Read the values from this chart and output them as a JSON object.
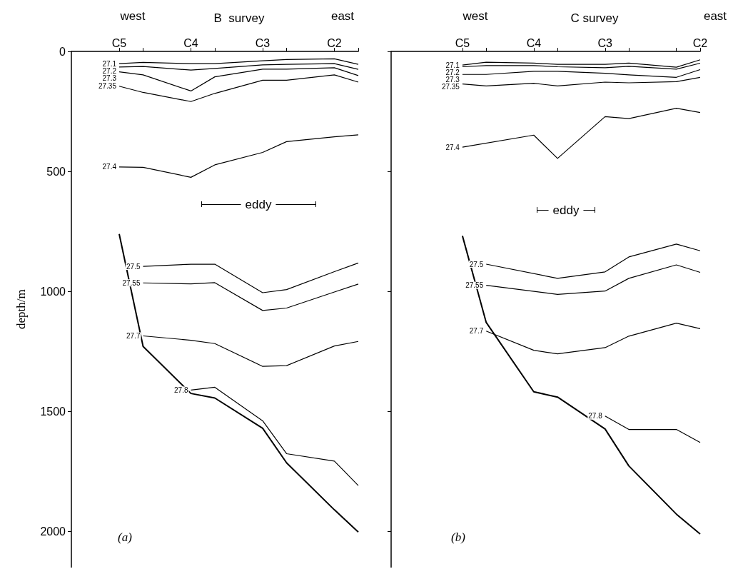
{
  "chart_data": [
    {
      "type": "line",
      "title": "B  survey",
      "ylabel": "depth/m",
      "annotations": [
        "west",
        "east",
        "(a)",
        "eddy"
      ],
      "categories": [
        null,
        null,
        "C5",
        null,
        null,
        "C4",
        null,
        null,
        "C3",
        null,
        null,
        "C2",
        null
      ],
      "ylim": [
        2150,
        0
      ],
      "yticks": [
        0,
        500,
        1000,
        1500,
        2000
      ],
      "grid": false,
      "legend": false,
      "marker": "none",
      "line_style": "solid",
      "series": [
        {
          "color": "#000000",
          "values": [
            null,
            null,
            761,
            1230,
            null,
            1426,
            1445,
            null,
            1571,
            1715,
            null,
            1911,
            2004
          ]
        },
        {
          "name": "27.1",
          "color": "#000000",
          "values": [
            null,
            null,
            51,
            46,
            null,
            51,
            51,
            null,
            39,
            34,
            null,
            31,
            54
          ]
        },
        {
          "name": "27.2",
          "color": "#000000",
          "values": [
            null,
            null,
            65,
            63,
            null,
            78,
            71,
            null,
            56,
            54,
            null,
            51,
            75
          ]
        },
        {
          "name": "27.3",
          "color": "#000000",
          "values": [
            null,
            null,
            85,
            98,
            null,
            165,
            106,
            null,
            74,
            74,
            null,
            68,
            101
          ]
        },
        {
          "name": "27.35",
          "color": "#000000",
          "values": [
            null,
            null,
            145,
            171,
            null,
            209,
            175,
            null,
            120,
            120,
            null,
            98,
            128
          ]
        },
        {
          "name": "27.4",
          "color": "#000000",
          "values": [
            null,
            null,
            482,
            483,
            null,
            525,
            473,
            null,
            421,
            376,
            null,
            356,
            348
          ]
        },
        {
          "name": "27.5",
          "color": "#000000",
          "values": [
            null,
            null,
            null,
            896,
            null,
            887,
            887,
            null,
            1006,
            993,
            null,
            918,
            882
          ]
        },
        {
          "name": "27.55",
          "color": "#000000",
          "values": [
            null,
            null,
            null,
            965,
            null,
            969,
            964,
            null,
            1080,
            1070,
            null,
            1003,
            970
          ]
        },
        {
          "name": "27.7",
          "color": "#000000",
          "values": [
            null,
            null,
            null,
            1186,
            null,
            1204,
            1218,
            null,
            1313,
            1310,
            null,
            1228,
            1209
          ]
        },
        {
          "name": "27.8",
          "color": "#000000",
          "values": [
            null,
            null,
            null,
            null,
            null,
            1412,
            1400,
            null,
            1540,
            1677,
            null,
            1708,
            1810
          ]
        }
      ]
    },
    {
      "type": "line",
      "title": "C survey",
      "annotations": [
        "west",
        "east",
        "(b)",
        "eddy"
      ],
      "tick_labels": "x",
      "categories": [
        null,
        null,
        null,
        "C5",
        null,
        null,
        "C4",
        null,
        null,
        "C3",
        null,
        null,
        null,
        "C2"
      ],
      "ylim": [
        2150,
        0
      ],
      "yticks": [
        0,
        500,
        1000,
        1500,
        2000
      ],
      "grid": false,
      "legend": false,
      "marker": "none",
      "line_style": "solid",
      "series": [
        {
          "color": "#000000",
          "values": [
            null,
            null,
            null,
            769,
            1130,
            null,
            1419,
            1441,
            null,
            1574,
            1728,
            null,
            1929,
            2012
          ]
        },
        {
          "name": "27.1",
          "color": "#000000",
          "values": [
            null,
            null,
            null,
            57,
            45,
            null,
            49,
            54,
            null,
            54,
            49,
            null,
            66,
            35
          ]
        },
        {
          "name": "27.2",
          "color": "#000000",
          "values": [
            null,
            null,
            null,
            64,
            59,
            null,
            59,
            64,
            null,
            68,
            62,
            null,
            74,
            49
          ]
        },
        {
          "name": "27.3",
          "color": "#000000",
          "values": [
            null,
            null,
            null,
            96,
            96,
            null,
            83,
            83,
            null,
            91,
            98,
            null,
            108,
            76
          ]
        },
        {
          "name": "27.35",
          "color": "#000000",
          "values": [
            null,
            null,
            null,
            136,
            144,
            null,
            133,
            144,
            null,
            128,
            131,
            null,
            126,
            108
          ]
        },
        {
          "name": "27.4",
          "color": "#000000",
          "values": [
            null,
            null,
            null,
            399,
            null,
            null,
            349,
            446,
            null,
            272,
            280,
            null,
            237,
            255
          ]
        },
        {
          "name": "27.5",
          "color": "#000000",
          "values": [
            null,
            null,
            null,
            null,
            887,
            null,
            null,
            946,
            null,
            919,
            857,
            null,
            803,
            831
          ]
        },
        {
          "name": "27.55",
          "color": "#000000",
          "values": [
            null,
            null,
            null,
            null,
            975,
            null,
            null,
            1013,
            null,
            999,
            946,
            null,
            890,
            921
          ]
        },
        {
          "name": "27.7",
          "color": "#000000",
          "values": [
            null,
            null,
            null,
            null,
            1166,
            null,
            1246,
            1261,
            null,
            1235,
            1187,
            null,
            1133,
            1156
          ]
        },
        {
          "name": "27.8",
          "color": "#000000",
          "values": [
            null,
            null,
            null,
            null,
            null,
            null,
            null,
            null,
            null,
            1520,
            1576,
            null,
            1576,
            1630
          ]
        }
      ]
    }
  ]
}
